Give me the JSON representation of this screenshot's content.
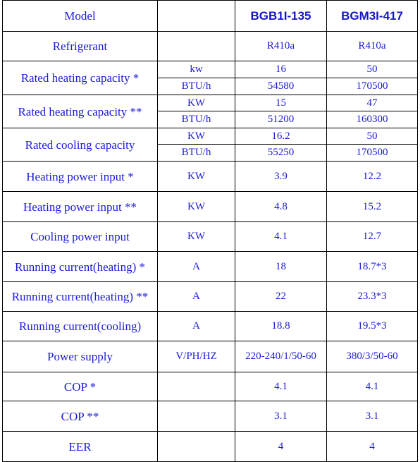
{
  "header": {
    "label": "Model",
    "models": [
      "BGB1I-135",
      "BGM3I-417"
    ]
  },
  "rows": [
    {
      "label": "Refrigerant",
      "sub": [
        {
          "unit": "",
          "values": [
            "R410a",
            "R410a"
          ]
        }
      ]
    },
    {
      "label": "Rated heating capacity *",
      "sub": [
        {
          "unit": "kw",
          "values": [
            "16",
            "50"
          ]
        },
        {
          "unit": "BTU/h",
          "values": [
            "54580",
            "170500"
          ]
        }
      ]
    },
    {
      "label": "Rated heating capacity **",
      "sub": [
        {
          "unit": "KW",
          "values": [
            "15",
            "47"
          ]
        },
        {
          "unit": "BTU/h",
          "values": [
            "51200",
            "160300"
          ]
        }
      ]
    },
    {
      "label": "Rated cooling capacity",
      "sub": [
        {
          "unit": "KW",
          "values": [
            "16.2",
            "50"
          ]
        },
        {
          "unit": "BTU/h",
          "values": [
            "55250",
            "170500"
          ]
        }
      ]
    },
    {
      "label": "Heating power input *",
      "sub": [
        {
          "unit": "KW",
          "values": [
            "3.9",
            "12.2"
          ]
        }
      ]
    },
    {
      "label": "Heating power input **",
      "sub": [
        {
          "unit": "KW",
          "values": [
            "4.8",
            "15.2"
          ]
        }
      ]
    },
    {
      "label": "Cooling power input",
      "sub": [
        {
          "unit": "KW",
          "values": [
            "4.1",
            "12.7"
          ]
        }
      ]
    },
    {
      "label": "Running current(heating) *",
      "sub": [
        {
          "unit": "A",
          "values": [
            "18",
            "18.7*3"
          ]
        }
      ]
    },
    {
      "label": "Running current(heating) **",
      "sub": [
        {
          "unit": "A",
          "values": [
            "22",
            "23.3*3"
          ]
        }
      ]
    },
    {
      "label": "Running current(cooling)",
      "sub": [
        {
          "unit": "A",
          "values": [
            "18.8",
            "19.5*3"
          ]
        }
      ]
    },
    {
      "label": "Power supply",
      "sub": [
        {
          "unit": "V/PH/HZ",
          "values": [
            "220-240/1/50-60",
            "380/3/50-60"
          ]
        }
      ]
    },
    {
      "label": "COP *",
      "sub": [
        {
          "unit": "",
          "values": [
            "4.1",
            "4.1"
          ]
        }
      ]
    },
    {
      "label": "COP **",
      "sub": [
        {
          "unit": "",
          "values": [
            "3.1",
            "3.1"
          ]
        }
      ]
    },
    {
      "label": "EER",
      "sub": [
        {
          "unit": "",
          "values": [
            "4",
            "4"
          ]
        }
      ]
    }
  ]
}
